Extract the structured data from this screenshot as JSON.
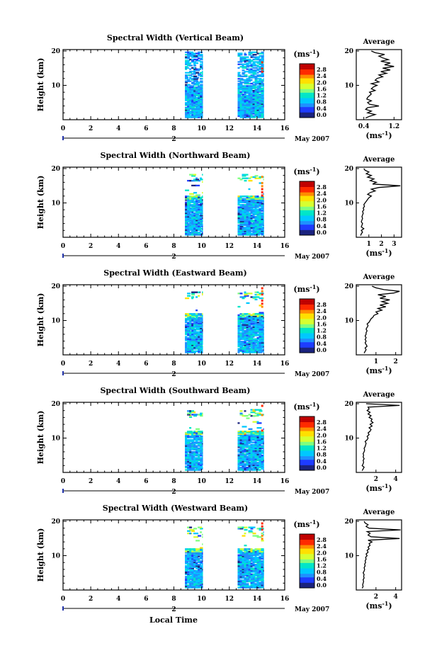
{
  "figure": {
    "panels": [
      {
        "title": "Spectral Width (Vertical Beam)",
        "avg_ticks": [
          "0.4",
          "1.2"
        ],
        "avg_xlim": [
          0.2,
          1.4
        ],
        "profile": [
          [
            0.45,
            0.5
          ],
          [
            0.55,
            1
          ],
          [
            0.7,
            1.5
          ],
          [
            0.5,
            2
          ],
          [
            0.6,
            2.5
          ],
          [
            0.45,
            3
          ],
          [
            0.5,
            3.5
          ],
          [
            0.8,
            4
          ],
          [
            0.55,
            4.5
          ],
          [
            0.5,
            5
          ],
          [
            0.6,
            5.5
          ],
          [
            0.48,
            6
          ],
          [
            0.5,
            6.5
          ],
          [
            0.55,
            7
          ],
          [
            0.6,
            7.5
          ],
          [
            0.55,
            8
          ],
          [
            0.7,
            8.5
          ],
          [
            0.6,
            9
          ],
          [
            0.65,
            9.5
          ],
          [
            0.75,
            10
          ],
          [
            0.6,
            10.5
          ],
          [
            0.8,
            11
          ],
          [
            0.7,
            11.5
          ],
          [
            0.75,
            12
          ],
          [
            0.9,
            12.5
          ],
          [
            0.8,
            13
          ],
          [
            1.0,
            13.5
          ],
          [
            0.85,
            14
          ],
          [
            1.1,
            14.5
          ],
          [
            0.9,
            15
          ],
          [
            1.2,
            15.5
          ],
          [
            0.95,
            16
          ],
          [
            1.1,
            16.5
          ],
          [
            0.85,
            17
          ],
          [
            1.05,
            17.5
          ],
          [
            0.9,
            18
          ],
          [
            0.8,
            18.5
          ],
          [
            0.95,
            19
          ],
          [
            0.7,
            19.5
          ],
          [
            0.6,
            20
          ]
        ]
      },
      {
        "title": "Spectral Width (Northward Beam)",
        "avg_ticks": [
          "1",
          "2",
          "3"
        ],
        "avg_xlim": [
          0,
          3.6
        ],
        "profile": [
          [
            0.35,
            0.5
          ],
          [
            0.4,
            1
          ],
          [
            0.5,
            1.5
          ],
          [
            0.4,
            2
          ],
          [
            0.6,
            2.5
          ],
          [
            0.4,
            3
          ],
          [
            0.45,
            3.5
          ],
          [
            0.5,
            4
          ],
          [
            0.4,
            4.5
          ],
          [
            0.45,
            5
          ],
          [
            0.5,
            5.5
          ],
          [
            0.45,
            6
          ],
          [
            0.5,
            6.5
          ],
          [
            0.55,
            7
          ],
          [
            0.5,
            7.5
          ],
          [
            0.6,
            8
          ],
          [
            0.55,
            8.5
          ],
          [
            0.65,
            9
          ],
          [
            0.6,
            9.5
          ],
          [
            0.7,
            10
          ],
          [
            0.8,
            10.5
          ],
          [
            0.9,
            11
          ],
          [
            1.0,
            11.5
          ],
          [
            1.2,
            12
          ],
          [
            0.9,
            12.5
          ],
          [
            1.1,
            13
          ],
          [
            1.5,
            13.5
          ],
          [
            1.2,
            14
          ],
          [
            1.8,
            14.5
          ],
          [
            3.5,
            15
          ],
          [
            1.3,
            15.5
          ],
          [
            1.6,
            16
          ],
          [
            1.1,
            16.5
          ],
          [
            1.4,
            17
          ],
          [
            0.9,
            17.5
          ],
          [
            1.2,
            18
          ],
          [
            0.8,
            18.5
          ],
          [
            1.0,
            19
          ],
          [
            0.7,
            19.5
          ],
          [
            0.6,
            20
          ]
        ]
      },
      {
        "title": "Spectral Width (Eastward Beam)",
        "avg_ticks": [
          "1",
          "2"
        ],
        "avg_xlim": [
          0,
          2.3
        ],
        "profile": [
          [
            0.4,
            0.5
          ],
          [
            0.45,
            1
          ],
          [
            0.5,
            1.5
          ],
          [
            0.45,
            2
          ],
          [
            0.55,
            2.5
          ],
          [
            0.5,
            3
          ],
          [
            0.45,
            3.5
          ],
          [
            0.5,
            4
          ],
          [
            0.45,
            4.5
          ],
          [
            0.5,
            5
          ],
          [
            0.45,
            5.5
          ],
          [
            0.5,
            6
          ],
          [
            0.5,
            6.5
          ],
          [
            0.55,
            7
          ],
          [
            0.5,
            7.5
          ],
          [
            0.55,
            8
          ],
          [
            0.6,
            8.5
          ],
          [
            0.55,
            9
          ],
          [
            0.65,
            9.5
          ],
          [
            0.7,
            10
          ],
          [
            0.75,
            10.5
          ],
          [
            0.85,
            11
          ],
          [
            0.9,
            11.5
          ],
          [
            1.1,
            12
          ],
          [
            1.0,
            12.5
          ],
          [
            1.3,
            13
          ],
          [
            1.1,
            13.5
          ],
          [
            1.5,
            14
          ],
          [
            1.2,
            14.5
          ],
          [
            1.6,
            15
          ],
          [
            1.3,
            15.5
          ],
          [
            1.7,
            16
          ],
          [
            1.2,
            16.5
          ],
          [
            1.5,
            17
          ],
          [
            1.1,
            17.5
          ],
          [
            1.9,
            18
          ],
          [
            2.2,
            18.5
          ],
          [
            1.4,
            19
          ],
          [
            1.0,
            19.5
          ],
          [
            0.8,
            20
          ]
        ]
      },
      {
        "title": "Spectral Width (Southward Beam)",
        "avg_ticks": [
          "2",
          "4"
        ],
        "avg_xlim": [
          0,
          4.6
        ],
        "profile": [
          [
            0.6,
            0.5
          ],
          [
            0.7,
            1
          ],
          [
            0.8,
            1.5
          ],
          [
            0.6,
            2
          ],
          [
            0.7,
            2.5
          ],
          [
            0.75,
            3
          ],
          [
            0.7,
            3.5
          ],
          [
            0.8,
            4
          ],
          [
            0.7,
            4.5
          ],
          [
            0.75,
            5
          ],
          [
            0.7,
            5.5
          ],
          [
            0.8,
            6
          ],
          [
            0.85,
            6.5
          ],
          [
            0.8,
            7
          ],
          [
            0.9,
            7.5
          ],
          [
            0.95,
            8
          ],
          [
            1.0,
            8.5
          ],
          [
            0.9,
            9
          ],
          [
            1.1,
            9.5
          ],
          [
            1.2,
            10
          ],
          [
            1.1,
            10.5
          ],
          [
            1.3,
            11
          ],
          [
            1.2,
            11.5
          ],
          [
            1.4,
            12
          ],
          [
            1.5,
            12.5
          ],
          [
            1.3,
            13
          ],
          [
            1.6,
            13.5
          ],
          [
            1.4,
            14
          ],
          [
            1.7,
            14.5
          ],
          [
            1.5,
            15
          ],
          [
            1.6,
            15.5
          ],
          [
            1.3,
            16
          ],
          [
            1.5,
            16.5
          ],
          [
            1.2,
            17
          ],
          [
            1.4,
            17.5
          ],
          [
            1.1,
            18
          ],
          [
            1.3,
            18.5
          ],
          [
            1.2,
            19
          ],
          [
            4.4,
            19.5
          ],
          [
            1.0,
            20
          ]
        ]
      },
      {
        "title": "Spectral Width (Westward Beam)",
        "avg_ticks": [
          "2",
          "4"
        ],
        "avg_xlim": [
          0,
          4.6
        ],
        "profile": [
          [
            0.6,
            0.5
          ],
          [
            0.7,
            1
          ],
          [
            0.65,
            1.5
          ],
          [
            0.7,
            2
          ],
          [
            0.75,
            2.5
          ],
          [
            0.7,
            3
          ],
          [
            0.8,
            3.5
          ],
          [
            0.75,
            4
          ],
          [
            0.8,
            4.5
          ],
          [
            0.7,
            5
          ],
          [
            0.8,
            5.5
          ],
          [
            0.85,
            6
          ],
          [
            0.8,
            6.5
          ],
          [
            0.9,
            7
          ],
          [
            0.85,
            7.5
          ],
          [
            0.95,
            8
          ],
          [
            0.9,
            8.5
          ],
          [
            1.0,
            9
          ],
          [
            0.95,
            9.5
          ],
          [
            1.1,
            10
          ],
          [
            1.0,
            10.5
          ],
          [
            1.2,
            11
          ],
          [
            1.1,
            11.5
          ],
          [
            1.3,
            12
          ],
          [
            1.2,
            12.5
          ],
          [
            1.4,
            13
          ],
          [
            1.3,
            13.5
          ],
          [
            1.6,
            14
          ],
          [
            1.2,
            14.5
          ],
          [
            4.4,
            15
          ],
          [
            1.5,
            15.5
          ],
          [
            1.2,
            16
          ],
          [
            1.4,
            16.5
          ],
          [
            1.1,
            17
          ],
          [
            4.5,
            17.5
          ],
          [
            1.3,
            18
          ],
          [
            1.0,
            18.5
          ],
          [
            1.2,
            19
          ],
          [
            0.9,
            19.5
          ],
          [
            0.8,
            20
          ]
        ]
      }
    ],
    "x_ticks": [
      "0",
      "2",
      "4",
      "6",
      "8",
      "10",
      "12",
      "14",
      "16"
    ],
    "x_tick_values": [
      0,
      2,
      4,
      6,
      8,
      10,
      12,
      14,
      16
    ],
    "y_ticks": [
      "10",
      "20"
    ],
    "y_label": "Height (km)",
    "date_day": "2",
    "date_text": "May 2007",
    "colorbar_unit": "(ms",
    "colorbar_unit_exp": "-1",
    "colorbar_unit_close": ")",
    "colorbar_ticks": [
      "2.8",
      "2.4",
      "2.0",
      "1.6",
      "1.2",
      "0.8",
      "0.4",
      "0.0"
    ],
    "avg_title": "Average",
    "avg_unit": "(ms",
    "avg_unit_exp": "-1",
    "avg_unit_close": ")",
    "x_label": "Local Time",
    "colors": {
      "colormap": [
        "#1a237e",
        "#1e3cff",
        "#1e90ff",
        "#00c8ff",
        "#00e5c8",
        "#7fff7f",
        "#d7ff30",
        "#ffe000",
        "#ff8c00",
        "#ff2a00",
        "#c00000"
      ]
    }
  },
  "chart_data": [
    {
      "type": "heatmap",
      "title": "Spectral Width (Vertical Beam)",
      "xlabel": "",
      "ylabel": "Height (km)",
      "xlim": [
        0,
        16
      ],
      "ylim": [
        0,
        20
      ],
      "x_ticks": [
        0,
        2,
        4,
        6,
        8,
        10,
        12,
        14,
        16
      ],
      "y_ticks": [
        10,
        20
      ],
      "colorbar_unit": "(ms-1)",
      "colorbar_range": [
        0,
        3.0
      ],
      "data_windows_local_time": [
        [
          8.8,
          10.1
        ],
        [
          12.6,
          14.5
        ]
      ]
    },
    {
      "type": "heatmap",
      "title": "Spectral Width (Northward Beam)",
      "xlabel": "",
      "ylabel": "Height (km)",
      "xlim": [
        0,
        16
      ],
      "ylim": [
        0,
        20
      ],
      "x_ticks": [
        0,
        2,
        4,
        6,
        8,
        10,
        12,
        14,
        16
      ],
      "y_ticks": [
        10,
        20
      ],
      "colorbar_unit": "(ms-1)",
      "colorbar_range": [
        0,
        3.0
      ],
      "data_windows_local_time": [
        [
          8.8,
          10.1
        ],
        [
          12.6,
          14.5
        ]
      ]
    },
    {
      "type": "heatmap",
      "title": "Spectral Width (Eastward Beam)",
      "xlabel": "",
      "ylabel": "Height (km)",
      "xlim": [
        0,
        16
      ],
      "ylim": [
        0,
        20
      ],
      "x_ticks": [
        0,
        2,
        4,
        6,
        8,
        10,
        12,
        14,
        16
      ],
      "y_ticks": [
        10,
        20
      ],
      "colorbar_unit": "(ms-1)",
      "colorbar_range": [
        0,
        3.0
      ],
      "data_windows_local_time": [
        [
          8.8,
          10.1
        ],
        [
          12.6,
          14.5
        ]
      ]
    },
    {
      "type": "heatmap",
      "title": "Spectral Width (Southward Beam)",
      "xlabel": "",
      "ylabel": "Height (km)",
      "xlim": [
        0,
        16
      ],
      "ylim": [
        0,
        20
      ],
      "x_ticks": [
        0,
        2,
        4,
        6,
        8,
        10,
        12,
        14,
        16
      ],
      "y_ticks": [
        10,
        20
      ],
      "colorbar_unit": "(ms-1)",
      "colorbar_range": [
        0,
        3.0
      ],
      "data_windows_local_time": [
        [
          8.8,
          10.1
        ],
        [
          12.6,
          14.5
        ]
      ]
    },
    {
      "type": "heatmap",
      "title": "Spectral Width (Westward Beam)",
      "xlabel": "Local Time",
      "ylabel": "Height (km)",
      "xlim": [
        0,
        16
      ],
      "ylim": [
        0,
        20
      ],
      "x_ticks": [
        0,
        2,
        4,
        6,
        8,
        10,
        12,
        14,
        16
      ],
      "y_ticks": [
        10,
        20
      ],
      "colorbar_unit": "(ms-1)",
      "colorbar_range": [
        0,
        3.0
      ],
      "data_windows_local_time": [
        [
          8.8,
          10.1
        ],
        [
          12.6,
          14.5
        ]
      ]
    },
    {
      "type": "line",
      "title": "Average",
      "xlabel": "(ms-1)",
      "series": [
        {
          "note": "height-profile averages; see figure.panels[].profile as [value, height_km] pairs"
        }
      ]
    }
  ]
}
